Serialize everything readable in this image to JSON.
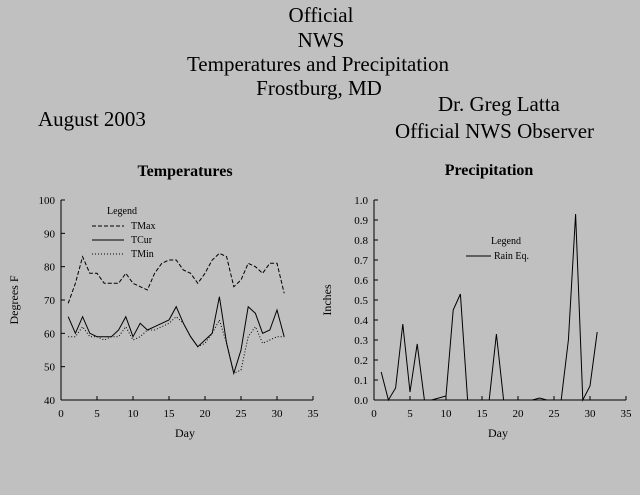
{
  "header": {
    "line1": "Official",
    "line2": "NWS",
    "line3": "Temperatures and Precipitation",
    "line4": "Frostburg, MD",
    "date": "August 2003",
    "observer_name": "Dr. Greg Latta",
    "observer_title": "Official NWS Observer"
  },
  "chart_data": [
    {
      "type": "line",
      "title": "Temperatures",
      "xlabel": "Day",
      "ylabel": "Degrees F",
      "xlim": [
        0,
        35
      ],
      "ylim": [
        40,
        100
      ],
      "xticks": [
        0,
        5,
        10,
        15,
        20,
        25,
        30,
        35
      ],
      "yticks": [
        40,
        50,
        60,
        70,
        80,
        90,
        100
      ],
      "legend_title": "Legend",
      "legend_position": "top-left",
      "x": [
        1,
        2,
        3,
        4,
        5,
        6,
        7,
        8,
        9,
        10,
        11,
        12,
        13,
        14,
        15,
        16,
        17,
        18,
        19,
        20,
        21,
        22,
        23,
        24,
        25,
        26,
        27,
        28,
        29,
        30,
        31
      ],
      "series": [
        {
          "name": "TMax",
          "style": "dashed",
          "values": [
            69,
            75,
            83,
            78,
            78,
            75,
            75,
            75,
            78,
            75,
            74,
            73,
            78,
            81,
            82,
            82,
            79,
            78,
            75,
            78,
            82,
            84,
            83,
            74,
            76,
            81,
            80,
            78,
            81,
            81,
            72
          ]
        },
        {
          "name": "TCur",
          "style": "solid",
          "values": [
            65,
            60,
            65,
            60,
            59,
            59,
            59,
            61,
            65,
            59,
            63,
            61,
            62,
            63,
            64,
            68,
            63,
            59,
            56,
            58,
            60,
            71,
            57,
            48,
            55,
            68,
            66,
            60,
            61,
            67,
            59
          ]
        },
        {
          "name": "TMin",
          "style": "dotted",
          "values": [
            59,
            59,
            62,
            59,
            59,
            58,
            59,
            59,
            62,
            58,
            59,
            61,
            61,
            62,
            63,
            65,
            63,
            59,
            56,
            57,
            60,
            64,
            57,
            48,
            49,
            59,
            62,
            57,
            58,
            59,
            59
          ]
        }
      ]
    },
    {
      "type": "line",
      "title": "Precipitation",
      "xlabel": "Day",
      "ylabel": "Inches",
      "xlim": [
        0,
        35
      ],
      "ylim": [
        0,
        1
      ],
      "xticks": [
        0,
        5,
        10,
        15,
        20,
        25,
        30,
        35
      ],
      "yticks": [
        0.0,
        0.1,
        0.2,
        0.3,
        0.4,
        0.5,
        0.6,
        0.7,
        0.8,
        0.9,
        1.0
      ],
      "legend_title": "Legend",
      "legend_position": "top-center",
      "x": [
        1,
        2,
        3,
        4,
        5,
        6,
        7,
        8,
        9,
        10,
        11,
        12,
        13,
        14,
        15,
        16,
        17,
        18,
        19,
        20,
        21,
        22,
        23,
        24,
        25,
        26,
        27,
        28,
        29,
        30,
        31
      ],
      "series": [
        {
          "name": "Rain Eq.",
          "style": "solid",
          "values": [
            0.14,
            0,
            0.06,
            0.38,
            0.04,
            0.28,
            0,
            0,
            0.01,
            0.02,
            0.45,
            0.53,
            0,
            0,
            0,
            0,
            0.33,
            0,
            0,
            0,
            0,
            0,
            0.01,
            0,
            0,
            0,
            0.3,
            0.93,
            0,
            0.07,
            0.34
          ]
        }
      ]
    }
  ]
}
